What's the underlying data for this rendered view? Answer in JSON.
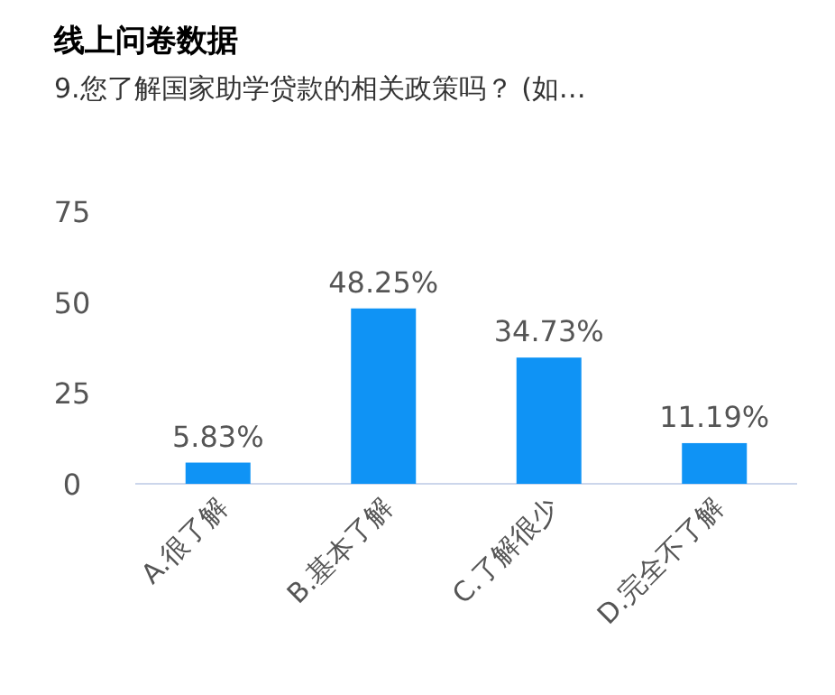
{
  "chart_data": {
    "type": "bar",
    "title": "线上问卷数据",
    "subtitle": "9.您了解国家助学贷款的相关政策吗？ (如…",
    "categories": [
      "A.很了解",
      "B.基本了解",
      "C.了解很少",
      "D.完全不了解"
    ],
    "values": [
      5.83,
      48.25,
      34.73,
      11.19
    ],
    "value_labels": [
      "5.83%",
      "48.25%",
      "34.73%",
      "11.19%"
    ],
    "color": "#0f93f5",
    "ylim": [
      0,
      75
    ],
    "yticks": [
      0,
      25,
      50,
      75
    ]
  }
}
